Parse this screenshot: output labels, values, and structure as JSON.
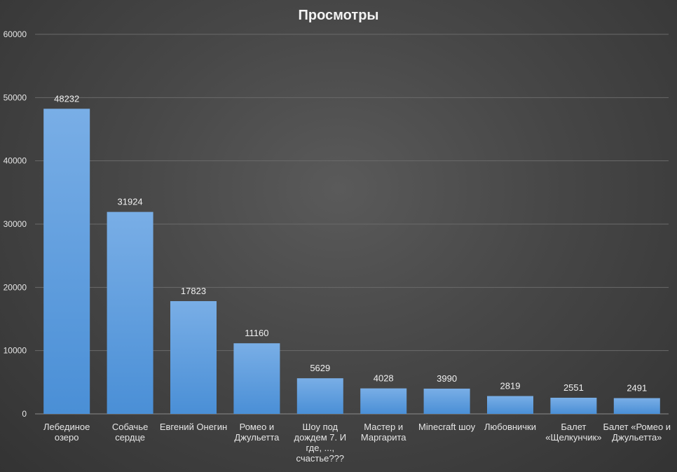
{
  "chart_data": {
    "type": "bar",
    "title": "Просмотры",
    "xlabel": "",
    "ylabel": "",
    "ylim": [
      0,
      60000
    ],
    "yticks": [
      0,
      10000,
      20000,
      30000,
      40000,
      50000,
      60000
    ],
    "grid": true,
    "legend": "none",
    "bar_color": "#5b9bd5",
    "categories": [
      [
        "Лебединое",
        "озеро"
      ],
      [
        "Собачье",
        "сердце"
      ],
      [
        "Евгений Онегин"
      ],
      [
        "Ромео и",
        "Джульетта"
      ],
      [
        "Шоу под",
        "дождем 7. И",
        "где, ...,",
        "счастье???"
      ],
      [
        "Мастер и",
        "Маргарита"
      ],
      [
        "Minecraft шоу"
      ],
      [
        "Любовнички"
      ],
      [
        "Балет",
        "«Щелкунчик»"
      ],
      [
        "Балет «Ромео и",
        "Джульетта»"
      ]
    ],
    "values": [
      48232,
      31924,
      17823,
      11160,
      5629,
      4028,
      3990,
      2819,
      2551,
      2491
    ]
  }
}
